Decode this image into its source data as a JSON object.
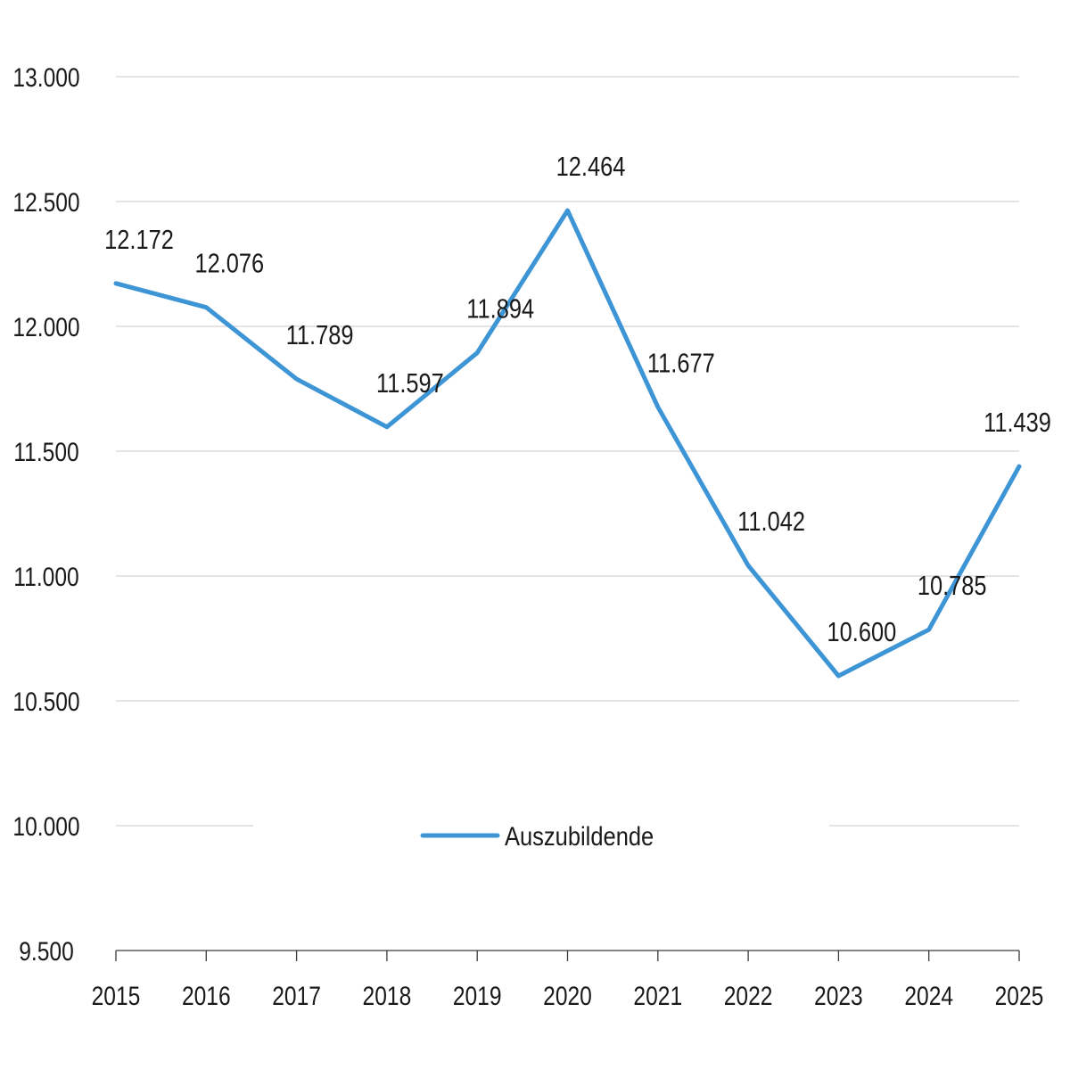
{
  "chart_data": {
    "type": "line",
    "categories": [
      "2015",
      "2016",
      "2017",
      "2018",
      "2019",
      "2020",
      "2021",
      "2022",
      "2023",
      "2024",
      "2025"
    ],
    "series": [
      {
        "name": "Auszubildende",
        "values": [
          12172,
          12076,
          11789,
          11597,
          11894,
          12464,
          11677,
          11042,
          10600,
          10785,
          11439
        ],
        "labels": [
          "12.172",
          "12.076",
          "11.789",
          "11.597",
          "11.894",
          "12.464",
          "11.677",
          "11.042",
          "10.600",
          "10.785",
          "11.439"
        ],
        "color": "#3d95d6"
      }
    ],
    "ylim": [
      9500,
      13000
    ],
    "yticks": [
      {
        "value": 9500,
        "label": "9.500"
      },
      {
        "value": 10000,
        "label": "10.000"
      },
      {
        "value": 10500,
        "label": "10.500"
      },
      {
        "value": 11000,
        "label": "11.000"
      },
      {
        "value": 11500,
        "label": "11.500"
      },
      {
        "value": 12000,
        "label": "12.000"
      },
      {
        "value": 12500,
        "label": "12.500"
      },
      {
        "value": 13000,
        "label": "13.000"
      }
    ],
    "grid": true,
    "legend": "bottom-center",
    "title": "",
    "xlabel": "",
    "ylabel": ""
  }
}
